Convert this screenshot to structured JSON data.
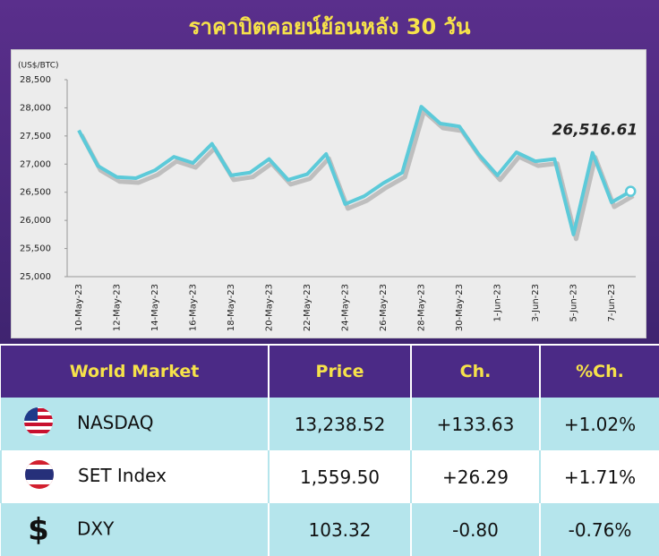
{
  "chart_data": {
    "type": "line",
    "title": "ราคาบิตคอยน์ย้อนหลัง 30 วัน",
    "y_label": "(US$/BTC)",
    "categories": [
      "10-May-23",
      null,
      "12-May-23",
      null,
      "14-May-23",
      null,
      "16-May-23",
      null,
      "18-May-23",
      null,
      "20-May-23",
      null,
      "22-May-23",
      null,
      "24-May-23",
      null,
      "26-May-23",
      null,
      "28-May-23",
      null,
      "30-May-23",
      null,
      "1-Jun-23",
      null,
      "3-Jun-23",
      null,
      "5-Jun-23",
      null,
      "7-Jun-23",
      null
    ],
    "values": [
      27600,
      26970,
      26770,
      26750,
      26890,
      27130,
      27020,
      27360,
      26800,
      26850,
      27090,
      26720,
      26820,
      27180,
      26290,
      26430,
      26660,
      26850,
      28020,
      27720,
      27670,
      27180,
      26800,
      27210,
      27050,
      27090,
      25750,
      27200,
      26320,
      26516.61
    ],
    "color": "#5ccad9",
    "annotation": {
      "text": "26,516.61",
      "value": 26516.61
    },
    "ylim": [
      25000,
      28500
    ],
    "yticks": [
      {
        "value": 25000,
        "label": "25,000"
      },
      {
        "value": 25500,
        "label": "25,500"
      },
      {
        "value": 26000,
        "label": "26,000"
      },
      {
        "value": 26500,
        "label": "26,500"
      },
      {
        "value": 27000,
        "label": "27,000"
      },
      {
        "value": 27500,
        "label": "27,500"
      },
      {
        "value": 28000,
        "label": "28,000"
      },
      {
        "value": 28500,
        "label": "28,500"
      }
    ],
    "grid": false
  },
  "table": {
    "header": [
      "World Market",
      "Price",
      "Ch.",
      "%Ch."
    ],
    "rows": [
      [
        "NASDAQ",
        "13,238.52",
        "+133.63",
        "+1.02%"
      ],
      [
        "SET Index",
        "1,559.50",
        "+26.29",
        "+1.71%"
      ],
      [
        "DXY",
        "103.32",
        "-0.80",
        "-0.76%"
      ]
    ],
    "dxy_symbol": "$"
  }
}
